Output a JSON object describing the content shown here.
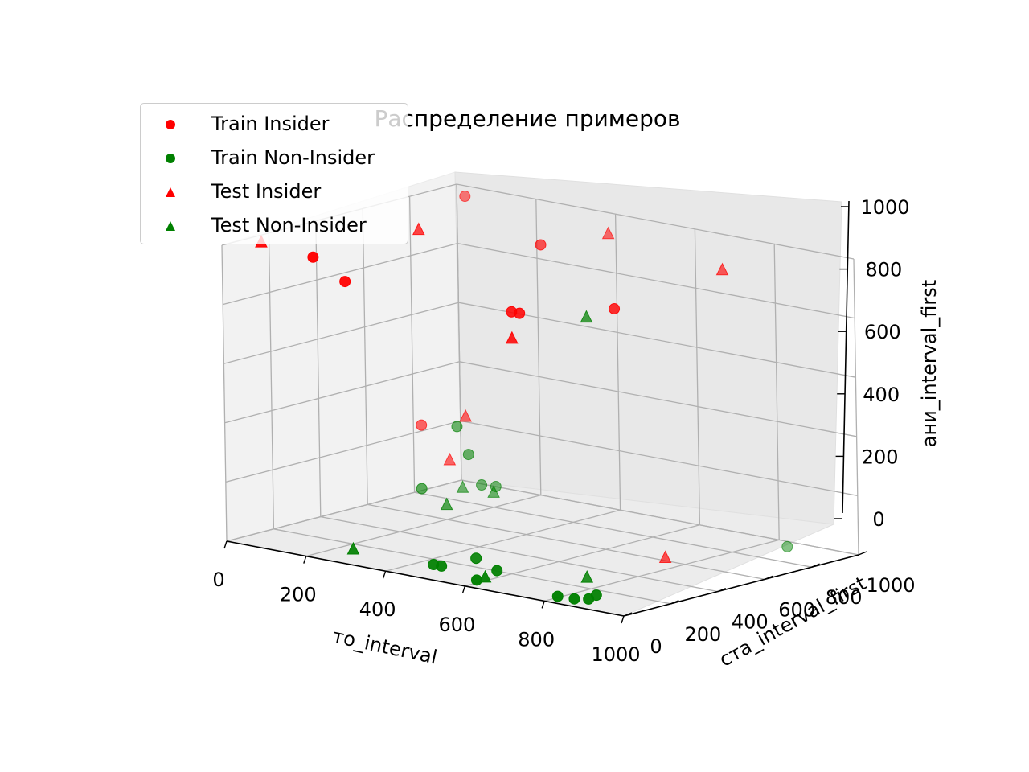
{
  "chart_data": {
    "type": "scatter",
    "projection": "3d",
    "title": "Распределение примеров",
    "xlabel": "то_interval",
    "ylabel": "ста_interval_first",
    "zlabel": "ани_interval_first",
    "xlim": [
      0,
      1000
    ],
    "ylim": [
      0,
      1000
    ],
    "zlim": [
      0,
      1000
    ],
    "xticks": [
      "0",
      "200",
      "400",
      "600",
      "800",
      "1000"
    ],
    "yticks": [
      "0",
      "200",
      "400",
      "600",
      "800",
      "1000"
    ],
    "zticks": [
      "0",
      "200",
      "400",
      "600",
      "800",
      "1000"
    ],
    "grid": true,
    "legend_placement": "top-left",
    "series": [
      {
        "name": "Train Insider",
        "color": "#ff0000",
        "marker": "circle",
        "points": [
          [
            200,
            50,
            1000
          ],
          [
            250,
            100,
            920
          ],
          [
            80,
            900,
            1000
          ],
          [
            430,
            630,
            980
          ],
          [
            580,
            250,
            870
          ],
          [
            600,
            250,
            870
          ],
          [
            780,
            350,
            910
          ],
          [
            50,
            750,
            250
          ]
        ]
      },
      {
        "name": "Train Non-Insider",
        "color": "#008000",
        "marker": "circle",
        "points": [
          [
            110,
            800,
            250
          ],
          [
            150,
            780,
            170
          ],
          [
            140,
            850,
            50
          ],
          [
            170,
            860,
            50
          ],
          [
            90,
            680,
            60
          ],
          [
            450,
            120,
            10
          ],
          [
            470,
            120,
            10
          ],
          [
            510,
            200,
            30
          ],
          [
            600,
            50,
            10
          ],
          [
            610,
            120,
            30
          ],
          [
            840,
            60,
            5
          ],
          [
            870,
            70,
            10
          ],
          [
            860,
            120,
            10
          ],
          [
            810,
            40,
            10
          ],
          [
            850,
            950,
            0
          ]
        ]
      },
      {
        "name": "Test Insider",
        "color": "#ff0000",
        "marker": "triangle",
        "points": [
          [
            40,
            100,
            1000
          ],
          [
            200,
            500,
            1000
          ],
          [
            500,
            800,
            1000
          ],
          [
            870,
            660,
            1000
          ],
          [
            580,
            250,
            780
          ],
          [
            150,
            770,
            300
          ],
          [
            120,
            750,
            150
          ],
          [
            750,
            600,
            10
          ]
        ]
      },
      {
        "name": "Test Non-Insider",
        "color": "#008000",
        "marker": "triangle",
        "points": [
          [
            620,
            500,
            810
          ],
          [
            110,
            820,
            40
          ],
          [
            200,
            600,
            50
          ],
          [
            200,
            800,
            50
          ],
          [
            230,
            150,
            0
          ],
          [
            580,
            120,
            0
          ],
          [
            730,
            300,
            0
          ]
        ]
      }
    ]
  }
}
